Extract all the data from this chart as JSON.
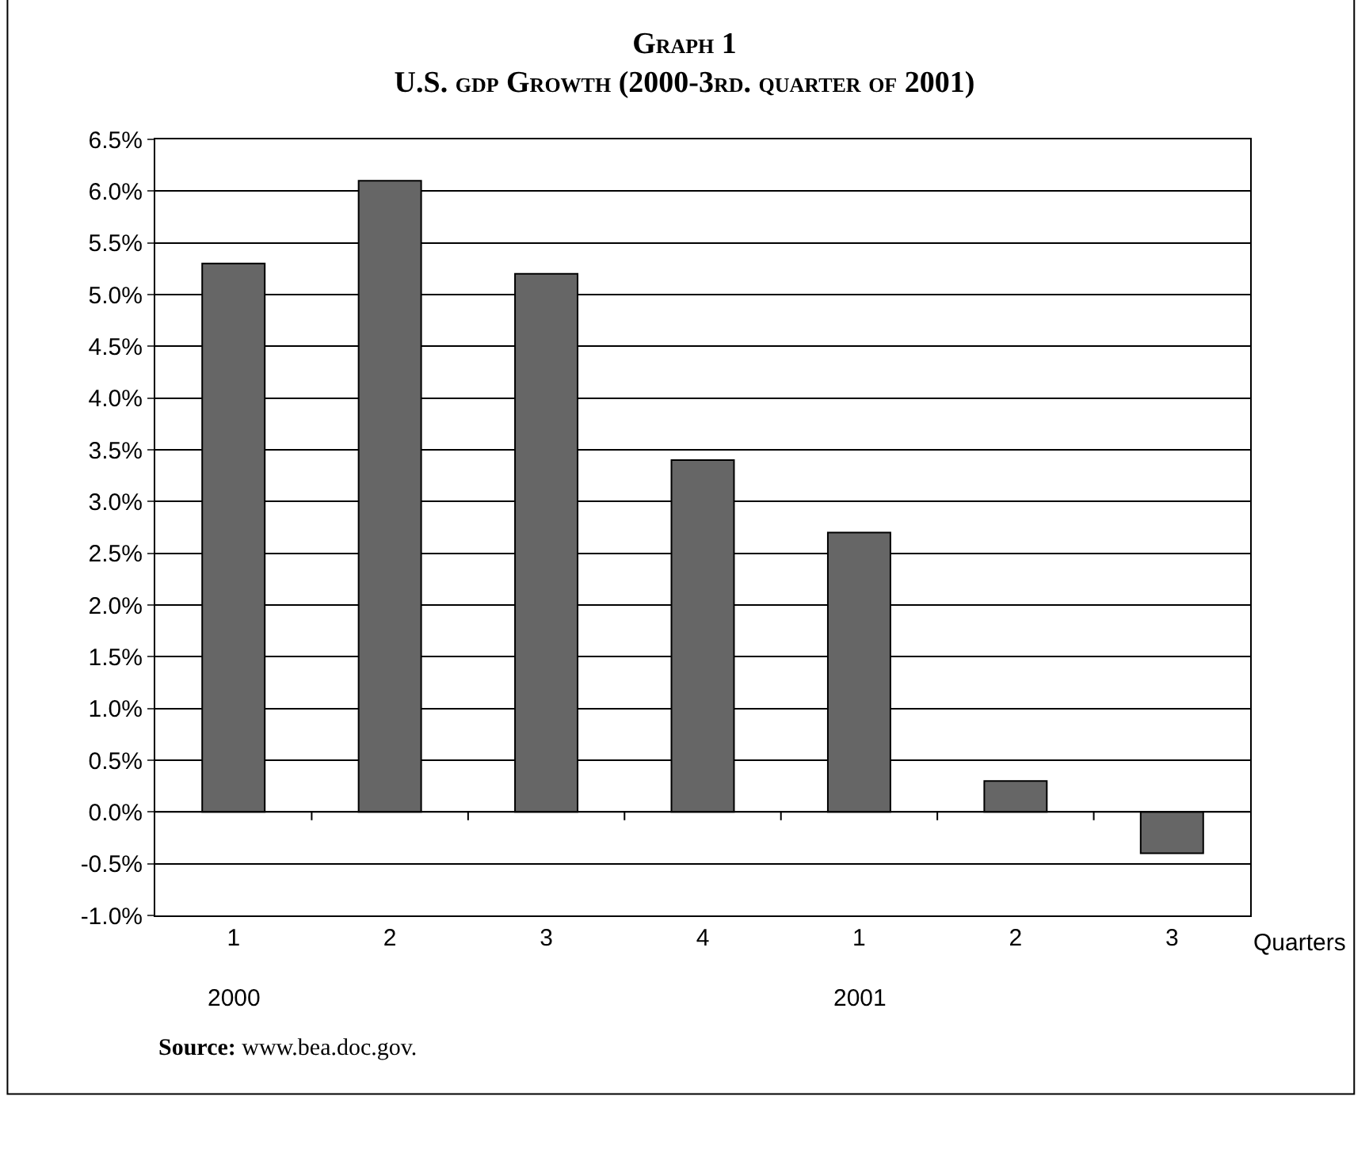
{
  "chart_data": {
    "type": "bar",
    "title": "Graph 1",
    "subtitle": "U.S. gdp Growth (2000-3rd. quarter of 2001)",
    "xlabel": "Quarters",
    "categories": [
      "1",
      "2",
      "3",
      "4",
      "1",
      "2",
      "3"
    ],
    "values": [
      5.3,
      6.1,
      5.2,
      3.4,
      2.7,
      0.3,
      -0.4
    ],
    "color": "#666666",
    "ylim": [
      -1.0,
      6.5
    ],
    "yticks": [
      {
        "value": -1.0,
        "label": "-1.0%"
      },
      {
        "value": -0.5,
        "label": "-0.5%"
      },
      {
        "value": 0,
        "label": "0.0%"
      },
      {
        "value": 0.5,
        "label": "0.5%"
      },
      {
        "value": 1.0,
        "label": "1.0%"
      },
      {
        "value": 1.5,
        "label": "1.5%"
      },
      {
        "value": 2.0,
        "label": "2.0%"
      },
      {
        "value": 2.5,
        "label": "2.5%"
      },
      {
        "value": 3.0,
        "label": "3.0%"
      },
      {
        "value": 3.5,
        "label": "3.5%"
      },
      {
        "value": 4.0,
        "label": "4.0%"
      },
      {
        "value": 4.5,
        "label": "4.5%"
      },
      {
        "value": 5.0,
        "label": "5.0%"
      },
      {
        "value": 5.5,
        "label": "5.5%"
      },
      {
        "value": 6.0,
        "label": "6.0%"
      },
      {
        "value": 6.5,
        "label": "6.5%"
      }
    ],
    "grid": "y",
    "legend": false,
    "annotations": [
      "2000",
      "2001",
      "Source: www.bea.doc.gov."
    ]
  }
}
